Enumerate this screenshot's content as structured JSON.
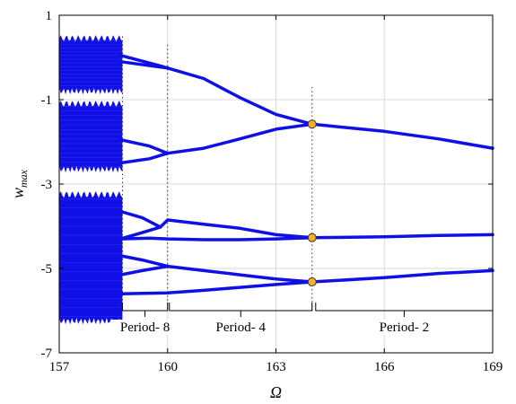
{
  "chart_data": {
    "type": "line",
    "title": "",
    "xlabel": "Ω",
    "ylabel_base": "w",
    "ylabel_sub": "max",
    "xlim": [
      157,
      169
    ],
    "ylim": [
      -7,
      1
    ],
    "xticks": [
      157,
      160,
      163,
      166,
      169
    ],
    "yticks": [
      -7,
      -5,
      -3,
      -1,
      1
    ],
    "grid": true,
    "colors": {
      "branch": "#1010e6",
      "marker_fill": "#f3b12b",
      "marker_edge": "#333333",
      "grid": "#d9d9d9"
    },
    "chaotic_bands": {
      "x_range": [
        157.0,
        158.75
      ],
      "bands": [
        [
          -0.8,
          0.45
        ],
        [
          -2.65,
          -1.1
        ],
        [
          -6.25,
          -3.25
        ]
      ]
    },
    "branches": [
      {
        "x": [
          158.7,
          160.0,
          161.0,
          162.0,
          163.0,
          164.0
        ],
        "y": [
          -0.1,
          -0.25,
          -0.5,
          -0.95,
          -1.35,
          -1.58
        ]
      },
      {
        "x": [
          158.7,
          159.8,
          160.0
        ],
        "y": [
          0.05,
          -0.2,
          -0.25
        ]
      },
      {
        "x": [
          164.0,
          166.0,
          167.5,
          169.0
        ],
        "y": [
          -1.58,
          -1.75,
          -1.93,
          -2.15
        ]
      },
      {
        "x": [
          158.7,
          159.5,
          160.0,
          161.0,
          162.0,
          163.0,
          164.0
        ],
        "y": [
          -1.95,
          -2.1,
          -2.27,
          -2.15,
          -1.93,
          -1.7,
          -1.58
        ]
      },
      {
        "x": [
          158.7,
          159.5,
          160.0
        ],
        "y": [
          -2.5,
          -2.4,
          -2.27
        ]
      },
      {
        "x": [
          158.7,
          159.3,
          159.8,
          160.0,
          161.0,
          162.0,
          163.0,
          164.0
        ],
        "y": [
          -4.3,
          -4.15,
          -4.02,
          -3.85,
          -3.95,
          -4.05,
          -4.2,
          -4.27
        ]
      },
      {
        "x": [
          158.7,
          159.5,
          160.0,
          161.0,
          162.0,
          163.0,
          164.0
        ],
        "y": [
          -4.3,
          -4.28,
          -4.3,
          -4.32,
          -4.32,
          -4.3,
          -4.27
        ]
      },
      {
        "x": [
          158.7,
          159.3,
          159.8
        ],
        "y": [
          -3.65,
          -3.8,
          -4.02
        ]
      },
      {
        "x": [
          164.0,
          166.0,
          167.5,
          169.0
        ],
        "y": [
          -4.27,
          -4.25,
          -4.22,
          -4.2
        ]
      },
      {
        "x": [
          158.7,
          159.3,
          160.0,
          161.0,
          162.0,
          163.0,
          164.0
        ],
        "y": [
          -4.7,
          -4.8,
          -4.95,
          -5.05,
          -5.15,
          -5.25,
          -5.32
        ]
      },
      {
        "x": [
          158.7,
          159.3,
          160.0
        ],
        "y": [
          -5.15,
          -5.05,
          -4.95
        ]
      },
      {
        "x": [
          158.7,
          160.0,
          161.0,
          162.0,
          163.0,
          164.0
        ],
        "y": [
          -5.6,
          -5.58,
          -5.52,
          -5.45,
          -5.38,
          -5.32
        ]
      },
      {
        "x": [
          164.0,
          166.0,
          167.5,
          169.0
        ],
        "y": [
          -5.32,
          -5.22,
          -5.12,
          -5.05
        ]
      }
    ],
    "bifurcation_points": [
      {
        "x": 164.0,
        "y": -1.58
      },
      {
        "x": 164.0,
        "y": -4.27
      },
      {
        "x": 164.0,
        "y": -5.32
      }
    ],
    "dotted_lines": [
      {
        "x": 158.75,
        "y_top": 0.5
      },
      {
        "x": 160.0,
        "y_top": 0.3
      },
      {
        "x": 164.0,
        "y_top": -0.7
      }
    ],
    "regions": [
      {
        "label": "Period- 8",
        "x_start": 158.75,
        "x_end": 160.0
      },
      {
        "label": "Period- 4",
        "x_start": 160.05,
        "x_end": 164.0
      },
      {
        "label": "Period- 2",
        "x_start": 164.1,
        "x_end": 169.0
      }
    ]
  }
}
